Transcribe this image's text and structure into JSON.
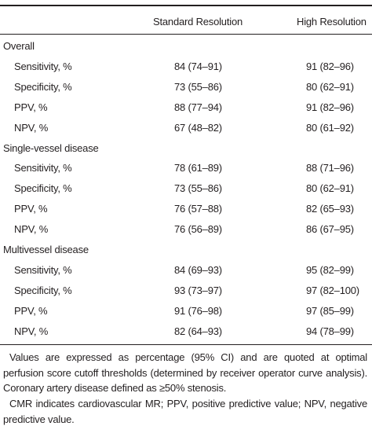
{
  "table": {
    "header": [
      "Standard Resolution",
      "High Resolution"
    ],
    "sections": [
      {
        "name": "Overall",
        "rows": [
          [
            "Sensitivity, %",
            "84 (74–91)",
            "91 (82–96)"
          ],
          [
            "Specificity, %",
            "73 (55–86)",
            "80 (62–91)"
          ],
          [
            "PPV, %",
            "88 (77–94)",
            "91 (82–96)"
          ],
          [
            "NPV, %",
            "67 (48–82)",
            "80 (61–92)"
          ]
        ]
      },
      {
        "name": "Single-vessel disease",
        "rows": [
          [
            "Sensitivity, %",
            "78 (61–89)",
            "88 (71–96)"
          ],
          [
            "Specificity, %",
            "73 (55–86)",
            "80 (62–91)"
          ],
          [
            "PPV, %",
            "76 (57–88)",
            "82 (65–93)"
          ],
          [
            "NPV, %",
            "76 (56–89)",
            "86 (67–95)"
          ]
        ]
      },
      {
        "name": "Multivessel disease",
        "rows": [
          [
            "Sensitivity, %",
            "84 (69–93)",
            "95 (82–99)"
          ],
          [
            "Specificity, %",
            "93 (73–97)",
            "97 (82–100)"
          ],
          [
            "PPV, %",
            "91 (76–98)",
            "97 (85–99)"
          ],
          [
            "NPV, %",
            "82 (64–93)",
            "94 (78–99)"
          ]
        ]
      }
    ],
    "notes": [
      "Values are expressed as percentage (95% CI) and are quoted at optimal perfusion score cutoff thresholds (determined by receiver operator curve analysis). Coronary artery disease defined as ≥50% stenosis.",
      "CMR indicates cardiovascular MR; PPV, positive predictive value; NPV, negative predictive value."
    ]
  }
}
